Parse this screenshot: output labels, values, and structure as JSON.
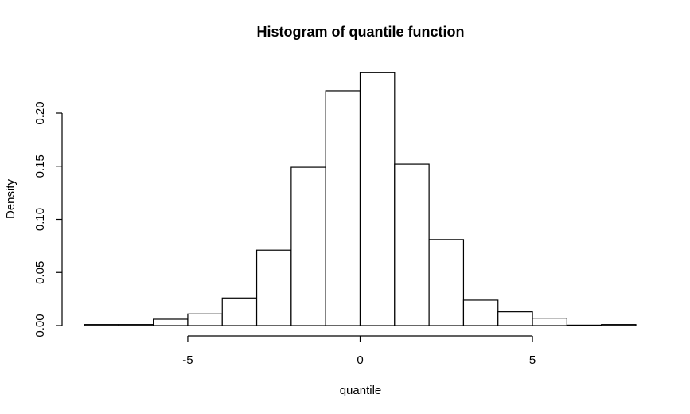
{
  "chart_data": {
    "type": "bar",
    "title": "Histogram of quantile function",
    "xlabel": "quantile",
    "ylabel": "Density",
    "xlim": [
      -8,
      8
    ],
    "ylim": [
      0,
      0.2
    ],
    "x_ticks": [
      -5,
      0,
      5
    ],
    "y_ticks": [
      0.0,
      0.05,
      0.1,
      0.15,
      0.2
    ],
    "y_tick_labels": [
      "0.00",
      "0.05",
      "0.10",
      "0.15",
      "0.20"
    ],
    "x_tick_labels": [
      "-5",
      "0",
      "5"
    ],
    "bins": [
      {
        "x0": -8,
        "x1": -7,
        "density": 0.001
      },
      {
        "x0": -7,
        "x1": -6,
        "density": 0.001
      },
      {
        "x0": -6,
        "x1": -5,
        "density": 0.006
      },
      {
        "x0": -5,
        "x1": -4,
        "density": 0.011
      },
      {
        "x0": -4,
        "x1": -3,
        "density": 0.026
      },
      {
        "x0": -3,
        "x1": -2,
        "density": 0.071
      },
      {
        "x0": -2,
        "x1": -1,
        "density": 0.149
      },
      {
        "x0": -1,
        "x1": 0,
        "density": 0.221
      },
      {
        "x0": 0,
        "x1": 1,
        "density": 0.238
      },
      {
        "x0": 1,
        "x1": 2,
        "density": 0.152
      },
      {
        "x0": 2,
        "x1": 3,
        "density": 0.081
      },
      {
        "x0": 3,
        "x1": 4,
        "density": 0.024
      },
      {
        "x0": 4,
        "x1": 5,
        "density": 0.013
      },
      {
        "x0": 5,
        "x1": 6,
        "density": 0.007
      },
      {
        "x0": 6,
        "x1": 7,
        "density": 0.0
      },
      {
        "x0": 7,
        "x1": 8,
        "density": 0.001
      }
    ],
    "grid": false,
    "legend": "none"
  }
}
